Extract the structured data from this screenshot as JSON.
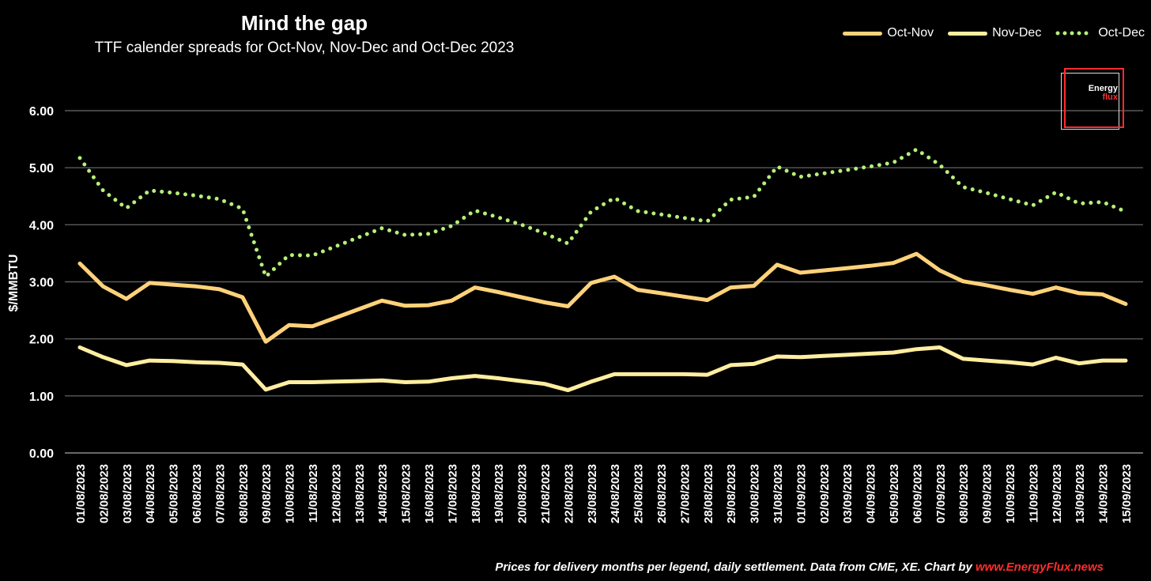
{
  "chart_data": {
    "type": "line",
    "title": "Mind the gap",
    "subtitle": "TTF calender spreads for Oct-Nov, Nov-Dec and Oct-Dec 2023",
    "ylabel": "$/MMBTU",
    "xlabel": "",
    "ylim": [
      0,
      6
    ],
    "yticks": [
      "0.00",
      "1.00",
      "2.00",
      "3.00",
      "4.00",
      "5.00",
      "6.00"
    ],
    "grid": true,
    "legend_position": "top-right",
    "x": [
      "01/08/2023",
      "02/08/2023",
      "03/08/2023",
      "04/08/2023",
      "05/08/2023",
      "06/08/2023",
      "07/08/2023",
      "08/08/2023",
      "09/08/2023",
      "10/08/2023",
      "11/08/2023",
      "12/08/2023",
      "13/08/2023",
      "14/08/2023",
      "15/08/2023",
      "16/08/2023",
      "17/08/2023",
      "18/08/2023",
      "19/08/2023",
      "20/08/2023",
      "21/08/2023",
      "22/08/2023",
      "23/08/2023",
      "24/08/2023",
      "25/08/2023",
      "26/08/2023",
      "27/08/2023",
      "28/08/2023",
      "29/08/2023",
      "30/08/2023",
      "31/08/2023",
      "01/09/2023",
      "02/09/2023",
      "03/09/2023",
      "04/09/2023",
      "05/09/2023",
      "06/09/2023",
      "07/09/2023",
      "08/09/2023",
      "09/09/2023",
      "10/09/2023",
      "11/09/2023",
      "12/09/2023",
      "13/09/2023",
      "14/09/2023",
      "15/09/2023"
    ],
    "series": [
      {
        "name": "Oct-Nov",
        "color": "#ffd27a",
        "style": "solid",
        "values": [
          3.32,
          2.92,
          2.7,
          2.98,
          2.95,
          2.92,
          2.87,
          2.73,
          1.95,
          2.24,
          2.22,
          2.37,
          2.52,
          2.67,
          2.58,
          2.59,
          2.67,
          2.9,
          2.82,
          2.73,
          2.64,
          2.57,
          2.98,
          3.09,
          2.86,
          2.8,
          2.74,
          2.68,
          2.9,
          2.93,
          3.3,
          3.16,
          3.2,
          3.24,
          3.28,
          3.33,
          3.49,
          3.2,
          3.01,
          2.94,
          2.86,
          2.79,
          2.9,
          2.8,
          2.78,
          2.61
        ]
      },
      {
        "name": "Nov-Dec",
        "color": "#ffeea0",
        "style": "solid",
        "values": [
          1.85,
          1.68,
          1.54,
          1.62,
          1.61,
          1.59,
          1.58,
          1.55,
          1.11,
          1.24,
          1.24,
          1.25,
          1.26,
          1.27,
          1.24,
          1.25,
          1.31,
          1.35,
          1.31,
          1.26,
          1.21,
          1.1,
          1.25,
          1.38,
          1.38,
          1.38,
          1.38,
          1.37,
          1.54,
          1.56,
          1.69,
          1.68,
          1.7,
          1.72,
          1.74,
          1.76,
          1.82,
          1.85,
          1.65,
          1.62,
          1.59,
          1.55,
          1.67,
          1.57,
          1.62,
          1.62
        ]
      },
      {
        "name": "Oct-Dec",
        "color": "#b4f07a",
        "style": "dotted",
        "values": [
          5.17,
          4.6,
          4.29,
          4.6,
          4.56,
          4.51,
          4.45,
          4.28,
          3.09,
          3.47,
          3.46,
          3.62,
          3.78,
          3.94,
          3.82,
          3.84,
          3.98,
          4.25,
          4.13,
          4.0,
          3.85,
          3.67,
          4.23,
          4.47,
          4.24,
          4.18,
          4.12,
          4.06,
          4.44,
          4.49,
          5.02,
          4.84,
          4.9,
          4.96,
          5.02,
          5.09,
          5.32,
          5.05,
          4.66,
          4.56,
          4.45,
          4.34,
          4.57,
          4.37,
          4.4,
          4.23
        ]
      }
    ],
    "annotation": "Prices for delivery months per legend, daily settlement. Data from CME, XE. Chart by",
    "annotation_link": "www.EnergyFlux.news"
  },
  "logo": {
    "line1": "Energy",
    "line2": "flux"
  }
}
